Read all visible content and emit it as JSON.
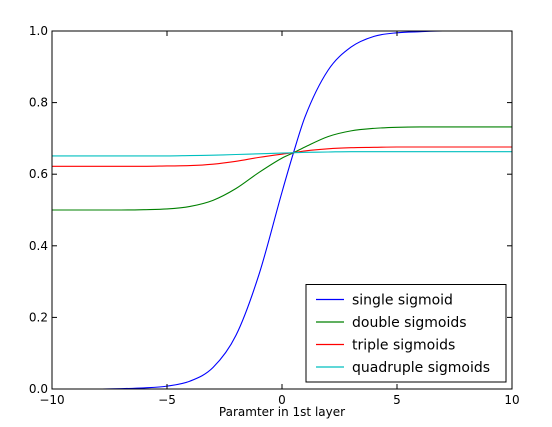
{
  "chart_data": {
    "type": "line",
    "title": "",
    "xlabel": "Paramter in 1st layer",
    "ylabel": "",
    "xlim": [
      -10,
      10
    ],
    "ylim": [
      0.0,
      1.0
    ],
    "xticks": [
      -10,
      -5,
      0,
      5,
      10
    ],
    "xtick_labels": [
      "−10",
      "−5",
      "0",
      "5",
      "10"
    ],
    "yticks": [
      0.0,
      0.2,
      0.4,
      0.6,
      0.8,
      1.0
    ],
    "ytick_labels": [
      "0.0",
      "0.2",
      "0.4",
      "0.6",
      "0.8",
      "1.0"
    ],
    "grid": false,
    "legend_position": "lower-right",
    "series": [
      {
        "name": "single sigmoid",
        "color": "#0000ff",
        "x": [
          -10,
          -9,
          -8,
          -7,
          -6,
          -5,
          -4,
          -3,
          -2,
          -1,
          0,
          0.5,
          1,
          2,
          3,
          4,
          5,
          6,
          7,
          8,
          9,
          10
        ],
        "y": [
          0.0,
          0.0,
          0.0,
          0.001,
          0.003,
          0.008,
          0.022,
          0.06,
          0.15,
          0.32,
          0.55,
          0.66,
          0.76,
          0.89,
          0.955,
          0.985,
          0.995,
          0.998,
          1.0,
          1.0,
          1.0,
          1.0
        ]
      },
      {
        "name": "double sigmoids",
        "color": "#008000",
        "x": [
          -10,
          -9,
          -8,
          -7,
          -6,
          -5,
          -4,
          -3,
          -2,
          -1,
          0,
          0.5,
          1,
          2,
          3,
          4,
          5,
          6,
          7,
          8,
          9,
          10
        ],
        "y": [
          0.5,
          0.5,
          0.5,
          0.5,
          0.501,
          0.503,
          0.51,
          0.527,
          0.56,
          0.605,
          0.645,
          0.66,
          0.676,
          0.705,
          0.721,
          0.728,
          0.731,
          0.732,
          0.732,
          0.732,
          0.732,
          0.732
        ]
      },
      {
        "name": "triple sigmoids",
        "color": "#ff0000",
        "x": [
          -10,
          -9,
          -8,
          -7,
          -6,
          -5,
          -4,
          -3,
          -2,
          -1,
          0,
          0.5,
          1,
          2,
          3,
          4,
          5,
          6,
          7,
          8,
          9,
          10
        ],
        "y": [
          0.622,
          0.622,
          0.622,
          0.622,
          0.622,
          0.623,
          0.624,
          0.628,
          0.636,
          0.647,
          0.656,
          0.66,
          0.665,
          0.671,
          0.674,
          0.675,
          0.676,
          0.676,
          0.676,
          0.676,
          0.676,
          0.676
        ]
      },
      {
        "name": "quadruple sigmoids",
        "color": "#00bfbf",
        "x": [
          -10,
          -9,
          -8,
          -7,
          -6,
          -5,
          -4,
          -3,
          -2,
          -1,
          0,
          0.5,
          1,
          2,
          3,
          4,
          5,
          6,
          7,
          8,
          9,
          10
        ],
        "y": [
          0.651,
          0.651,
          0.651,
          0.651,
          0.651,
          0.651,
          0.652,
          0.653,
          0.655,
          0.657,
          0.659,
          0.66,
          0.661,
          0.662,
          0.663,
          0.663,
          0.663,
          0.663,
          0.663,
          0.663,
          0.663,
          0.663
        ]
      }
    ]
  }
}
